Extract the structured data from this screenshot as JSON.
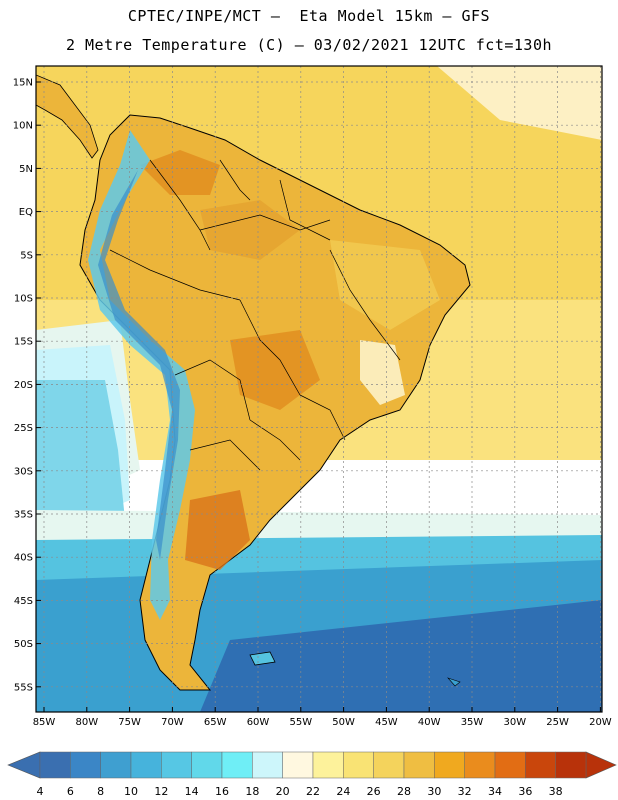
{
  "header": {
    "line1": "CPTEC/INPE/MCT –  Eta Model 15km – GFS",
    "line2": "2 Metre Temperature (C) – 03/02/2021 12UTC fct=130h"
  },
  "map": {
    "lat_labels": [
      "15N",
      "10N",
      "5N",
      "EQ",
      "5S",
      "10S",
      "15S",
      "20S",
      "25S",
      "30S",
      "35S",
      "40S",
      "45S",
      "50S",
      "55S"
    ],
    "lon_labels": [
      "85W",
      "80W",
      "75W",
      "70W",
      "65W",
      "60W",
      "55W",
      "50W",
      "45W",
      "40W",
      "35W",
      "30W",
      "25W",
      "20W"
    ],
    "colors": {
      "ocean_tropical": "#f6d55c",
      "ocean_warm": "#fae27e",
      "ocean_cool": "#c9f4fb",
      "ocean_cold": "#55c3e0",
      "ocean_colder": "#3aa0cf",
      "ocean_coldest": "#2f6fb3",
      "land_base": "#ecb53a",
      "land_hot": "#e08a1c",
      "andes_cold": "#5fc9ea",
      "andes_colder": "#3a8ecb",
      "border": "#000000",
      "grid": "#888888"
    }
  },
  "colorbar": {
    "values": [
      "4",
      "6",
      "8",
      "10",
      "12",
      "14",
      "16",
      "18",
      "20",
      "22",
      "24",
      "26",
      "28",
      "30",
      "32",
      "34",
      "36",
      "38"
    ],
    "colors": [
      "#3a6fb0",
      "#3b86c6",
      "#3f9fd0",
      "#46b3dc",
      "#56c7e4",
      "#61d8ea",
      "#6feef6",
      "#cdf6fb",
      "#fff8e0",
      "#fdf29b",
      "#f9e374",
      "#f4d35c",
      "#efbe42",
      "#f0a91f",
      "#ea8c1d",
      "#e26d14",
      "#c9460c",
      "#b8320a"
    ],
    "low_arrow_color": "#3a6fb0",
    "high_arrow_color": "#b8320a"
  }
}
